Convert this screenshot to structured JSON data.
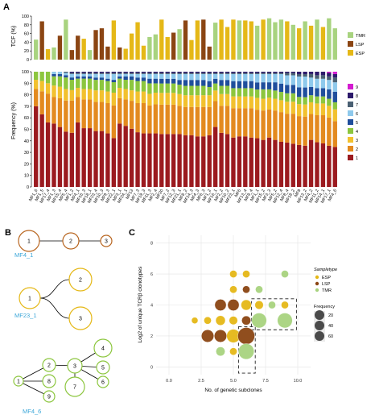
{
  "colors": {
    "TMR": "#a8d37f",
    "LSP": "#8b4513",
    "ESP": "#e5b817",
    "c1": "#9b1a1f",
    "c2": "#e38a1f",
    "c3": "#f2c12e",
    "c4": "#8cc63e",
    "c5": "#1f4e9c",
    "c6": "#8ec9ec",
    "c7": "#4a6073",
    "c8": "#2d1a6b",
    "c9": "#d41bd0",
    "tree_orange": "#b8651f",
    "tree_yellow": "#e5b817",
    "tree_green": "#8cc63e",
    "tree_label": "#3aa6d8"
  },
  "panels": {
    "a": "A",
    "b": "B",
    "c": "C"
  },
  "samples": [
    "MF1_6",
    "MF1_5",
    "MF17_4",
    "MF1_3",
    "MF15_4",
    "MF5_4",
    "MF1_2",
    "MF4_1",
    "MF16_3",
    "MF18_1",
    "MF23_4",
    "MF10_3",
    "MF9_3",
    "MF22_1",
    "MF3_1",
    "MF24_1",
    "MF13",
    "MF7_3",
    "MF19_3",
    "MF11_3",
    "MF2_4",
    "MF20",
    "MF7_2",
    "MF12_3",
    "MF21_1",
    "MF8_2",
    "MF14_3",
    "MF4_3",
    "MF6_3",
    "MF1_2",
    "MF16_1",
    "MF2_2",
    "MF10_2",
    "MF23_1",
    "MF6",
    "MF13_4",
    "MF9_4",
    "MF1_1",
    "MF15_2",
    "MF3_3",
    "MF5_2",
    "MF12_4",
    "MF8_4",
    "MF18_2",
    "MF9",
    "MF13_2",
    "MF4_2",
    "MF11_2",
    "MF14_1",
    "MF17_1",
    "MF4_6"
  ],
  "chart_data": [
    {
      "type": "bar",
      "ylabel": "TCF (%)",
      "ylim": [
        0,
        100
      ],
      "yticks": [
        0,
        20,
        40,
        60,
        80,
        100
      ],
      "legend": [
        {
          "name": "TMR",
          "color_key": "TMR"
        },
        {
          "name": "LSP",
          "color_key": "LSP"
        },
        {
          "name": "ESP",
          "color_key": "ESP"
        }
      ],
      "legend_position": "right",
      "values": [
        46,
        88,
        24,
        28,
        55,
        92,
        22,
        55,
        48,
        22,
        68,
        72,
        30,
        90,
        28,
        25,
        60,
        86,
        32,
        52,
        58,
        92,
        52,
        62,
        70,
        90,
        45,
        90,
        92,
        30,
        85,
        92,
        75,
        92,
        90,
        90,
        88,
        78,
        92,
        95,
        86,
        92,
        88,
        80,
        72,
        88,
        78,
        92,
        75,
        95,
        72
      ],
      "types": [
        "TMR",
        "LSP",
        "ESP",
        "TMR",
        "LSP",
        "TMR",
        "LSP",
        "LSP",
        "ESP",
        "TMR",
        "LSP",
        "LSP",
        "LSP",
        "ESP",
        "LSP",
        "ESP",
        "ESP",
        "ESP",
        "ESP",
        "TMR",
        "TMR",
        "ESP",
        "ESP",
        "LSP",
        "TMR",
        "LSP",
        "ESP",
        "ESP",
        "LSP",
        "LSP",
        "TMR",
        "ESP",
        "ESP",
        "ESP",
        "TMR",
        "ESP",
        "ESP",
        "TMR",
        "ESP",
        "TMR",
        "TMR",
        "TMR",
        "ESP",
        "TMR",
        "ESP",
        "TMR",
        "ESP",
        "TMR",
        "ESP",
        "TMR",
        "TMR"
      ]
    },
    {
      "type": "bar",
      "stacked": true,
      "ylabel": "Frequency (%)",
      "ylim": [
        0,
        100
      ],
      "yticks": [
        0,
        10,
        20,
        30,
        40,
        50,
        60,
        70,
        80,
        90,
        100
      ],
      "legend": [
        "9",
        "8",
        "7",
        "6",
        "5",
        "4",
        "3",
        "2",
        "1"
      ],
      "legend_position": "right",
      "series": [
        {
          "name": "1",
          "color_key": "c1",
          "values": [
            70,
            63,
            56,
            55,
            52,
            48,
            47,
            56,
            51,
            51,
            48,
            48,
            46,
            42,
            55,
            53,
            50,
            47,
            46,
            46,
            46,
            45,
            45,
            45,
            45,
            44,
            44,
            43,
            43,
            44,
            51,
            46,
            45,
            42,
            43,
            43,
            42,
            41,
            40,
            42,
            40,
            38,
            37,
            36,
            35,
            34,
            40,
            38,
            37,
            35,
            34
          ]
        },
        {
          "name": "2",
          "color_key": "c2",
          "values": [
            15,
            20,
            25,
            23,
            25,
            27,
            28,
            22,
            25,
            25,
            25,
            25,
            26,
            28,
            22,
            23,
            24,
            25,
            26,
            24,
            25,
            25,
            25,
            25,
            24,
            24,
            24,
            25,
            25,
            24,
            22,
            23,
            24,
            25,
            24,
            24,
            25,
            24,
            25,
            24,
            25,
            25,
            24,
            25,
            24,
            24,
            22,
            23,
            24,
            24,
            22
          ]
        },
        {
          "name": "3",
          "color_key": "c3",
          "values": [
            8,
            9,
            9,
            10,
            10,
            10,
            9,
            8,
            9,
            9,
            10,
            10,
            10,
            11,
            9,
            9,
            9,
            10,
            10,
            10,
            10,
            10,
            10,
            10,
            10,
            10,
            10,
            10,
            10,
            10,
            9,
            10,
            10,
            10,
            10,
            10,
            10,
            10,
            10,
            10,
            10,
            10,
            10,
            10,
            10,
            10,
            10,
            10,
            10,
            10,
            10
          ]
        },
        {
          "name": "4",
          "color_key": "c4",
          "values": [
            7,
            8,
            10,
            8,
            9,
            10,
            9,
            8,
            9,
            9,
            9,
            9,
            9,
            9,
            8,
            8,
            9,
            9,
            9,
            9,
            8,
            8,
            8,
            8,
            8,
            8,
            8,
            8,
            8,
            7,
            6,
            7,
            7,
            7,
            7,
            7,
            7,
            7,
            8,
            7,
            7,
            7,
            7,
            7,
            6,
            6,
            6,
            6,
            6,
            6,
            6
          ]
        },
        {
          "name": "5",
          "color_key": "c5",
          "values": [
            0,
            0,
            0,
            2,
            2,
            2,
            2,
            2,
            2,
            2,
            2,
            2,
            2,
            2,
            2,
            3,
            3,
            3,
            3,
            4,
            4,
            4,
            4,
            4,
            4,
            5,
            5,
            5,
            5,
            5,
            4,
            5,
            5,
            6,
            6,
            6,
            6,
            6,
            6,
            6,
            7,
            7,
            7,
            7,
            8,
            8,
            7,
            7,
            7,
            8,
            9
          ]
        },
        {
          "name": "6",
          "color_key": "c6",
          "values": [
            0,
            0,
            0,
            2,
            2,
            2,
            3,
            2,
            2,
            2,
            3,
            3,
            4,
            5,
            2,
            2,
            2,
            3,
            3,
            4,
            4,
            4,
            4,
            4,
            5,
            5,
            5,
            5,
            5,
            6,
            4,
            5,
            5,
            6,
            6,
            6,
            6,
            7,
            7,
            7,
            7,
            8,
            8,
            8,
            9,
            9,
            8,
            8,
            8,
            8,
            8
          ]
        },
        {
          "name": "7",
          "color_key": "c7",
          "values": [
            0,
            0,
            0,
            0,
            0,
            1,
            1,
            1,
            1,
            1,
            1,
            1,
            1,
            1,
            1,
            1,
            1,
            1,
            1,
            1,
            1,
            1,
            1,
            1,
            1,
            1,
            1,
            1,
            1,
            1,
            1,
            1,
            1,
            1,
            1,
            1,
            1,
            1,
            1,
            1,
            1,
            1,
            2,
            2,
            2,
            2,
            3,
            3,
            3,
            3,
            4
          ]
        },
        {
          "name": "8",
          "color_key": "c8",
          "values": [
            0,
            0,
            0,
            0,
            0,
            0,
            1,
            1,
            1,
            1,
            1,
            1,
            1,
            1,
            1,
            1,
            1,
            1,
            1,
            1,
            1,
            1,
            1,
            1,
            1,
            1,
            1,
            1,
            1,
            1,
            1,
            1,
            1,
            1,
            1,
            1,
            1,
            1,
            1,
            1,
            1,
            1,
            1,
            1,
            2,
            2,
            2,
            3,
            3,
            3,
            3
          ]
        },
        {
          "name": "9",
          "color_key": "c9",
          "values": [
            0,
            0,
            0,
            0,
            0,
            0,
            0,
            0,
            0,
            0,
            0,
            0,
            0,
            0,
            0,
            0,
            0,
            0,
            0,
            0,
            0,
            0,
            0,
            0,
            0,
            0,
            0,
            0,
            0,
            0,
            0,
            0,
            0,
            0,
            0,
            0,
            0,
            0,
            0,
            0,
            0,
            0,
            0,
            0,
            0,
            0,
            0,
            0,
            0,
            1,
            2
          ]
        }
      ]
    },
    {
      "type": "scatter",
      "xlabel": "No. of genetic subclones",
      "ylabel": "Log2 of unique TCRβ clonotypes",
      "xlim": [
        -1,
        11
      ],
      "ylim": [
        -0.5,
        8.5
      ],
      "xticks": [
        "0.0",
        "2.5",
        "5.0",
        "7.5",
        "10.0"
      ],
      "xtick_values": [
        0,
        2.5,
        5,
        7.5,
        10
      ],
      "yticks": [
        0,
        2,
        4,
        6,
        8
      ],
      "legend_title": "Sampletype",
      "legend": [
        {
          "name": "ESP",
          "color_key": "ESP"
        },
        {
          "name": "LSP",
          "color_key": "LSP"
        },
        {
          "name": "TMR",
          "color_key": "TMR"
        }
      ],
      "size_legend_title": "Frequency",
      "size_legend": [
        20,
        40,
        60
      ],
      "points": [
        {
          "x": 5,
          "y": 6,
          "type": "ESP",
          "freq": 5
        },
        {
          "x": 6,
          "y": 6,
          "type": "ESP",
          "freq": 5
        },
        {
          "x": 9,
          "y": 6,
          "type": "TMR",
          "freq": 5
        },
        {
          "x": 5,
          "y": 5,
          "type": "ESP",
          "freq": 5
        },
        {
          "x": 6,
          "y": 5,
          "type": "LSP",
          "freq": 5
        },
        {
          "x": 7,
          "y": 5,
          "type": "TMR",
          "freq": 5
        },
        {
          "x": 4,
          "y": 4,
          "type": "LSP",
          "freq": 20
        },
        {
          "x": 5,
          "y": 4,
          "type": "LSP",
          "freq": 20
        },
        {
          "x": 6,
          "y": 4,
          "type": "ESP",
          "freq": 15
        },
        {
          "x": 7,
          "y": 4,
          "type": "ESP",
          "freq": 8
        },
        {
          "x": 8,
          "y": 4,
          "type": "TMR",
          "freq": 5
        },
        {
          "x": 9,
          "y": 4,
          "type": "ESP",
          "freq": 5
        },
        {
          "x": 2,
          "y": 3,
          "type": "ESP",
          "freq": 3
        },
        {
          "x": 3,
          "y": 3,
          "type": "ESP",
          "freq": 5
        },
        {
          "x": 4,
          "y": 3,
          "type": "ESP",
          "freq": 12
        },
        {
          "x": 5,
          "y": 3,
          "type": "ESP",
          "freq": 8
        },
        {
          "x": 6,
          "y": 3,
          "type": "LSP",
          "freq": 10
        },
        {
          "x": 7,
          "y": 3,
          "type": "TMR",
          "freq": 40
        },
        {
          "x": 9,
          "y": 3,
          "type": "TMR",
          "freq": 40
        },
        {
          "x": 3,
          "y": 2,
          "type": "LSP",
          "freq": 25
        },
        {
          "x": 4,
          "y": 2,
          "type": "LSP",
          "freq": 25
        },
        {
          "x": 5,
          "y": 2,
          "type": "ESP",
          "freq": 30
        },
        {
          "x": 6,
          "y": 2,
          "type": "LSP",
          "freq": 55
        },
        {
          "x": 4,
          "y": 1,
          "type": "TMR",
          "freq": 10
        },
        {
          "x": 5,
          "y": 1,
          "type": "ESP",
          "freq": 5
        },
        {
          "x": 6,
          "y": 1,
          "type": "TMR",
          "freq": 45
        }
      ],
      "dashed_boxes": [
        {
          "x0": 5.4,
          "x1": 6.7,
          "y0": -0.4,
          "y1": 2.6
        },
        {
          "x0": 6.4,
          "x1": 9.9,
          "y0": 2.4,
          "y1": 4.4
        }
      ]
    }
  ],
  "trees": [
    {
      "label": "MF4_1",
      "color_key": "tree_orange",
      "nodes": [
        {
          "id": "1",
          "label": "1"
        },
        {
          "id": "2",
          "label": "2"
        },
        {
          "id": "3",
          "label": "3"
        }
      ],
      "edges": [
        [
          "1",
          "2"
        ],
        [
          "2",
          "3"
        ]
      ]
    },
    {
      "label": "MF23_1",
      "color_key": "tree_yellow",
      "nodes": [
        {
          "id": "1",
          "label": "1"
        },
        {
          "id": "2",
          "label": "2"
        },
        {
          "id": "3",
          "label": "3"
        }
      ],
      "edges": [
        [
          "1",
          "2"
        ],
        [
          "1",
          "3"
        ]
      ]
    },
    {
      "label": "MF4_6",
      "color_key": "tree_green",
      "nodes": [
        {
          "id": "1",
          "label": "1"
        },
        {
          "id": "2",
          "label": "2"
        },
        {
          "id": "8",
          "label": "8"
        },
        {
          "id": "9",
          "label": "9"
        },
        {
          "id": "3",
          "label": "3"
        },
        {
          "id": "7",
          "label": "7"
        },
        {
          "id": "4",
          "label": "4"
        },
        {
          "id": "5",
          "label": "5"
        },
        {
          "id": "6",
          "label": "6"
        }
      ],
      "edges": [
        [
          "1",
          "2"
        ],
        [
          "1",
          "8"
        ],
        [
          "1",
          "9"
        ],
        [
          "2",
          "3"
        ],
        [
          "3",
          "7"
        ],
        [
          "3",
          "4"
        ],
        [
          "3",
          "5"
        ],
        [
          "3",
          "6"
        ]
      ]
    }
  ]
}
